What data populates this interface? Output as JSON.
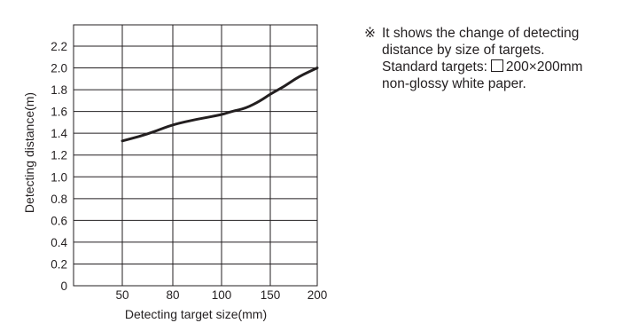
{
  "chart_data": {
    "type": "line",
    "xlabel": "Detecting target size(mm)",
    "ylabel": "Detecting distance(m)",
    "x_ticks": [
      "50",
      "80",
      "100",
      "150",
      "200"
    ],
    "y_ticks": [
      "0",
      "0.2",
      "0.4",
      "0.6",
      "0.8",
      "1.0",
      "1.2",
      "1.4",
      "1.6",
      "1.8",
      "2.0",
      "2.2"
    ],
    "ylim": [
      0,
      2.2
    ],
    "grid": true,
    "series": [
      {
        "x": [
          50,
          60,
          70,
          80,
          90,
          100,
          110,
          125,
          140,
          150,
          165,
          180,
          200
        ],
        "y": [
          1.33,
          1.37,
          1.42,
          1.48,
          1.53,
          1.57,
          1.6,
          1.63,
          1.7,
          1.76,
          1.83,
          1.92,
          2.0
        ]
      }
    ]
  },
  "note": {
    "mark": "※",
    "line1": "It shows the change of detecting",
    "line2": "distance by size of targets.",
    "line3_prefix": "Standard targets:",
    "line3_suffix": "200×200mm",
    "line4": "non-glossy white paper."
  },
  "colors": {
    "ink": "#231f20",
    "background": "#ffffff"
  }
}
